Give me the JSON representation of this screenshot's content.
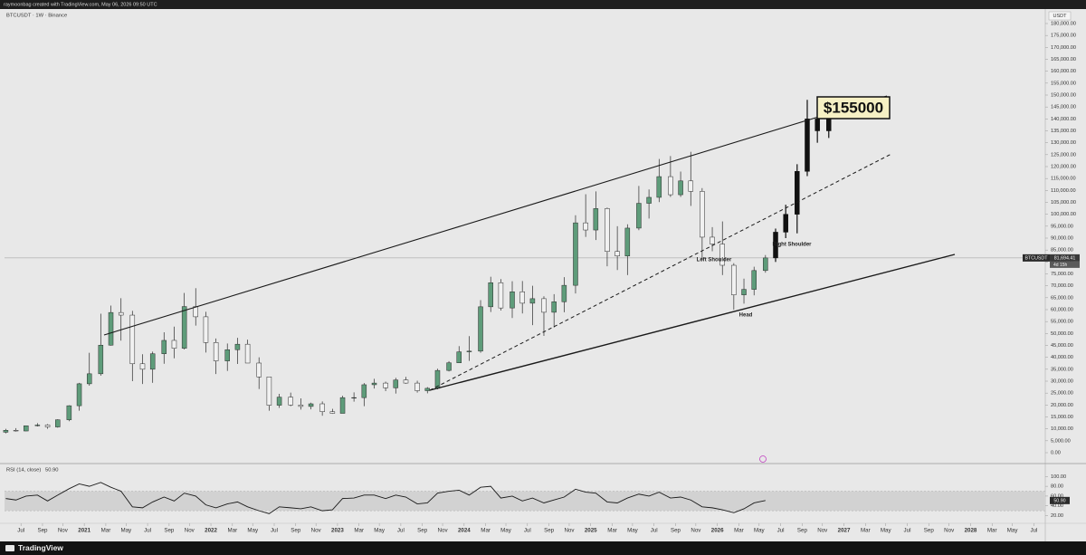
{
  "chart_data": [
    {
      "type": "candlestick",
      "caption": "raymoonbag created with TradingView.com, May 06, 2026 09:50 UTC",
      "title": "BTCUSDT · 1W · Binance",
      "y_label": "USDT",
      "brand": "TradingView",
      "annotations": [
        "$155000",
        "Left Shoulder",
        "Right Shoulder",
        "Head"
      ],
      "price_line": {
        "value": 81694.41,
        "label": "81,694.41",
        "symbol": "BTCUSDT",
        "countdown": "4d 15h"
      },
      "colors": {
        "up": "#5e9c7a",
        "down": "#f1f1f1",
        "outline": "#2b2b2b",
        "projection": "#111111"
      },
      "grid": false,
      "xlim": [
        2020.37,
        2028.59
      ],
      "ylim": [
        -4557,
        185316
      ],
      "xticks": [
        {
          "value": 2020.5,
          "label": "Jul"
        },
        {
          "value": 2020.67,
          "label": "Sep"
        },
        {
          "value": 2020.83,
          "label": "Nov"
        },
        2021,
        {
          "value": 2021.17,
          "label": "Mar"
        },
        {
          "value": 2021.33,
          "label": "May"
        },
        {
          "value": 2021.5,
          "label": "Jul"
        },
        {
          "value": 2021.67,
          "label": "Sep"
        },
        {
          "value": 2021.83,
          "label": "Nov"
        },
        2022,
        {
          "value": 2022.17,
          "label": "Mar"
        },
        {
          "value": 2022.33,
          "label": "May"
        },
        {
          "value": 2022.5,
          "label": "Jul"
        },
        {
          "value": 2022.67,
          "label": "Sep"
        },
        {
          "value": 2022.83,
          "label": "Nov"
        },
        2023,
        {
          "value": 2023.17,
          "label": "Mar"
        },
        {
          "value": 2023.33,
          "label": "May"
        },
        {
          "value": 2023.5,
          "label": "Jul"
        },
        {
          "value": 2023.67,
          "label": "Sep"
        },
        {
          "value": 2023.83,
          "label": "Nov"
        },
        2024,
        {
          "value": 2024.17,
          "label": "Mar"
        },
        {
          "value": 2024.33,
          "label": "May"
        },
        {
          "value": 2024.5,
          "label": "Jul"
        },
        {
          "value": 2024.67,
          "label": "Sep"
        },
        {
          "value": 2024.83,
          "label": "Nov"
        },
        2025,
        {
          "value": 2025.17,
          "label": "Mar"
        },
        {
          "value": 2025.33,
          "label": "May"
        },
        {
          "value": 2025.5,
          "label": "Jul"
        },
        {
          "value": 2025.67,
          "label": "Sep"
        },
        {
          "value": 2025.83,
          "label": "Nov"
        },
        2026,
        {
          "value": 2026.17,
          "label": "Mar"
        },
        {
          "value": 2026.33,
          "label": "May"
        },
        {
          "value": 2026.5,
          "label": "Jul"
        },
        {
          "value": 2026.67,
          "label": "Sep"
        },
        {
          "value": 2026.83,
          "label": "Nov"
        },
        2027,
        {
          "value": 2027.17,
          "label": "Mar"
        },
        {
          "value": 2027.33,
          "label": "May"
        },
        {
          "value": 2027.5,
          "label": "Jul"
        },
        {
          "value": 2027.67,
          "label": "Sep"
        },
        {
          "value": 2027.83,
          "label": "Nov"
        },
        2028,
        {
          "value": 2028.17,
          "label": "Mar"
        },
        {
          "value": 2028.33,
          "label": "May"
        },
        {
          "value": 2028.5,
          "label": "Jul"
        }
      ],
      "yticks": [
        {
          "value": 0,
          "label": "0.00"
        },
        {
          "value": 5000,
          "label": "5,000.00"
        },
        {
          "value": 10000,
          "label": "10,000.00"
        },
        {
          "value": 15000,
          "label": "15,000.00"
        },
        {
          "value": 20000,
          "label": "20,000.00"
        },
        {
          "value": 25000,
          "label": "25,000.00"
        },
        {
          "value": 30000,
          "label": "30,000.00"
        },
        {
          "value": 35000,
          "label": "35,000.00"
        },
        {
          "value": 40000,
          "label": "40,000.00"
        },
        {
          "value": 45000,
          "label": "45,000.00"
        },
        {
          "value": 50000,
          "label": "50,000.00"
        },
        {
          "value": 55000,
          "label": "55,000.00"
        },
        {
          "value": 60000,
          "label": "60,000.00"
        },
        {
          "value": 65000,
          "label": "65,000.00"
        },
        {
          "value": 70000,
          "label": "70,000.00"
        },
        {
          "value": 75000,
          "label": "75,000.00"
        },
        {
          "value": 80000,
          "label": "80,000.00"
        },
        {
          "value": 85000,
          "label": "85,000.00"
        },
        {
          "value": 90000,
          "label": "90,000.00"
        },
        {
          "value": 95000,
          "label": "95,000.00"
        },
        {
          "value": 100000,
          "label": "100,000.00"
        },
        {
          "value": 105000,
          "label": "105,000.00"
        },
        {
          "value": 110000,
          "label": "110,000.00"
        },
        {
          "value": 115000,
          "label": "115,000.00"
        },
        {
          "value": 120000,
          "label": "120,000.00"
        },
        {
          "value": 125000,
          "label": "125,000.00"
        },
        {
          "value": 130000,
          "label": "130,000.00"
        },
        {
          "value": 135000,
          "label": "135,000.00"
        },
        {
          "value": 140000,
          "label": "140,000.00"
        },
        {
          "value": 145000,
          "label": "145,000.00"
        },
        {
          "value": 150000,
          "label": "150,000.00"
        },
        {
          "value": 155000,
          "label": "155,000.00"
        },
        {
          "value": 160000,
          "label": "160,000.00"
        },
        {
          "value": 165000,
          "label": "165,000.00"
        },
        {
          "value": 170000,
          "label": "170,000.00"
        },
        {
          "value": 175000,
          "label": "175,000.00"
        },
        {
          "value": 180000,
          "label": "180,000.00"
        }
      ],
      "candles": {
        "x": [
          2020.38,
          2020.46,
          2020.54,
          2020.63,
          2020.71,
          2020.79,
          2020.88,
          2020.96,
          2021.04,
          2021.13,
          2021.21,
          2021.29,
          2021.38,
          2021.46,
          2021.54,
          2021.63,
          2021.71,
          2021.79,
          2021.88,
          2021.96,
          2022.04,
          2022.13,
          2022.21,
          2022.29,
          2022.38,
          2022.46,
          2022.54,
          2022.63,
          2022.71,
          2022.79,
          2022.88,
          2022.96,
          2023.04,
          2023.13,
          2023.21,
          2023.29,
          2023.38,
          2023.46,
          2023.54,
          2023.63,
          2023.71,
          2023.79,
          2023.88,
          2023.96,
          2024.04,
          2024.13,
          2024.21,
          2024.29,
          2024.38,
          2024.46,
          2024.54,
          2024.63,
          2024.71,
          2024.79,
          2024.88,
          2024.96,
          2025.04,
          2025.13,
          2025.21,
          2025.29,
          2025.38,
          2025.46,
          2025.54,
          2025.63,
          2025.71,
          2025.79,
          2025.88,
          2025.96,
          2026.04,
          2026.13,
          2026.21,
          2026.29,
          2026.38
        ],
        "open": [
          8600,
          9400,
          9100,
          11300,
          11600,
          10800,
          13800,
          19700,
          28900,
          33100,
          45100,
          58800,
          57700,
          37300,
          35000,
          41500,
          47100,
          43800,
          61300,
          57000,
          46200,
          38500,
          43200,
          45500,
          37600,
          31800,
          19900,
          23300,
          20000,
          19400,
          20500,
          17200,
          16500,
          23100,
          23100,
          28500,
          29200,
          27200,
          30500,
          29200,
          26000,
          27000,
          34500,
          37700,
          42300,
          42600,
          61200,
          71300,
          60700,
          67500,
          62700,
          64600,
          58900,
          63300,
          70200,
          96400,
          93400,
          102400,
          84400,
          82500,
          94200,
          104600,
          107100,
          115800,
          108200,
          114000,
          109600,
          90400,
          87500,
          78600,
          66200,
          68500,
          76400
        ],
        "high": [
          10000,
          10300,
          11400,
          12400,
          12000,
          14000,
          19900,
          29300,
          41900,
          58300,
          61700,
          64800,
          59500,
          41300,
          42400,
          50500,
          52900,
          67000,
          69000,
          59100,
          47900,
          45800,
          48200,
          47400,
          40000,
          31900,
          24700,
          25200,
          22800,
          21000,
          21500,
          18400,
          23900,
          25300,
          29200,
          31000,
          29800,
          31400,
          31800,
          30200,
          27500,
          35200,
          38400,
          44700,
          48900,
          64000,
          73800,
          72800,
          71900,
          72000,
          70000,
          65600,
          66500,
          73600,
          99600,
          108400,
          109600,
          102800,
          95000,
          95800,
          111900,
          110400,
          123200,
          124400,
          117900,
          126200,
          111000,
          94600,
          97000,
          79500,
          73000,
          78000,
          82900
        ],
        "low": [
          8100,
          8900,
          9000,
          11000,
          10000,
          10500,
          13200,
          17600,
          28100,
          32300,
          44900,
          47000,
          30000,
          28800,
          29300,
          37300,
          39600,
          43300,
          53300,
          42000,
          33000,
          34300,
          37200,
          37600,
          26700,
          17600,
          18800,
          19500,
          18100,
          18200,
          15500,
          16300,
          16500,
          21400,
          19500,
          26900,
          25800,
          24800,
          28900,
          25200,
          24900,
          26600,
          34100,
          37600,
          38500,
          41900,
          59000,
          59600,
          56500,
          58400,
          53500,
          49000,
          52500,
          58900,
          66800,
          90500,
          89200,
          78200,
          76600,
          74500,
          93300,
          98200,
          105100,
          107300,
          107300,
          103500,
          80600,
          84500,
          74500,
          60000,
          62500,
          66000,
          75500
        ],
        "close": [
          9400,
          9100,
          11300,
          11600,
          10800,
          13800,
          19700,
          28900,
          33100,
          45100,
          58800,
          57700,
          37300,
          35000,
          41500,
          47100,
          43800,
          61300,
          57000,
          46200,
          38500,
          43200,
          45500,
          37600,
          31800,
          19900,
          23300,
          20000,
          19400,
          20500,
          17200,
          16500,
          23100,
          23100,
          28500,
          29200,
          27200,
          30500,
          29200,
          26000,
          27000,
          34500,
          37700,
          42300,
          42600,
          61200,
          71300,
          60700,
          67500,
          62700,
          64600,
          58900,
          63300,
          70200,
          96400,
          93400,
          102400,
          84400,
          82500,
          94200,
          104600,
          107100,
          115800,
          108200,
          114000,
          109600,
          90400,
          87500,
          78600,
          66200,
          68500,
          76400,
          81694.41
        ]
      },
      "projection": {
        "x": [
          2026.46,
          2026.54,
          2026.63,
          2026.71,
          2026.79,
          2026.88
        ],
        "open": [
          81694.41,
          92500,
          100000,
          118000,
          140000,
          135000
        ],
        "high": [
          94000,
          104000,
          121000,
          148000,
          147000,
          146000
        ],
        "low": [
          80000,
          90000,
          92000,
          116000,
          130000,
          132000
        ],
        "close": [
          92500,
          100000,
          118000,
          140000,
          135000,
          144000
        ]
      }
    },
    {
      "type": "line",
      "title": "RSI (14, close)",
      "last_value_label": "50.90",
      "color": "#1a1a1a",
      "band": [
        30,
        70
      ],
      "band_color": "#d2d2d2",
      "xlim": [
        2020.37,
        2028.59
      ],
      "ylim": [
        8,
        108
      ],
      "yticks": [
        {
          "value": 100,
          "label": "100.00"
        },
        {
          "value": 80,
          "label": "80.00"
        },
        {
          "value": 60,
          "label": "60.00"
        },
        {
          "value": 40,
          "label": "40.00"
        },
        {
          "value": 20,
          "label": "20.00"
        }
      ],
      "x": [
        2020.38,
        2020.46,
        2020.54,
        2020.63,
        2020.71,
        2020.79,
        2020.88,
        2020.96,
        2021.04,
        2021.13,
        2021.21,
        2021.29,
        2021.38,
        2021.46,
        2021.54,
        2021.63,
        2021.71,
        2021.79,
        2021.88,
        2021.96,
        2022.04,
        2022.13,
        2022.21,
        2022.29,
        2022.38,
        2022.46,
        2022.54,
        2022.63,
        2022.71,
        2022.79,
        2022.88,
        2022.96,
        2023.04,
        2023.13,
        2023.21,
        2023.29,
        2023.38,
        2023.46,
        2023.54,
        2023.63,
        2023.71,
        2023.79,
        2023.88,
        2023.96,
        2024.04,
        2024.13,
        2024.21,
        2024.29,
        2024.38,
        2024.46,
        2024.54,
        2024.63,
        2024.71,
        2024.79,
        2024.88,
        2024.96,
        2025.04,
        2025.13,
        2025.21,
        2025.29,
        2025.38,
        2025.46,
        2025.54,
        2025.63,
        2025.71,
        2025.79,
        2025.88,
        2025.96,
        2026.04,
        2026.13,
        2026.21,
        2026.29,
        2026.38
      ],
      "values": [
        55,
        52,
        60,
        62,
        50,
        62,
        75,
        85,
        80,
        88,
        78,
        70,
        38,
        36,
        48,
        58,
        50,
        66,
        60,
        42,
        36,
        44,
        48,
        38,
        30,
        24,
        38,
        36,
        34,
        38,
        30,
        32,
        55,
        56,
        62,
        62,
        55,
        62,
        58,
        44,
        46,
        66,
        70,
        72,
        62,
        78,
        80,
        56,
        60,
        50,
        56,
        46,
        52,
        58,
        74,
        68,
        66,
        48,
        46,
        56,
        64,
        60,
        68,
        56,
        58,
        52,
        38,
        36,
        32,
        26,
        34,
        46,
        50.9
      ]
    }
  ]
}
